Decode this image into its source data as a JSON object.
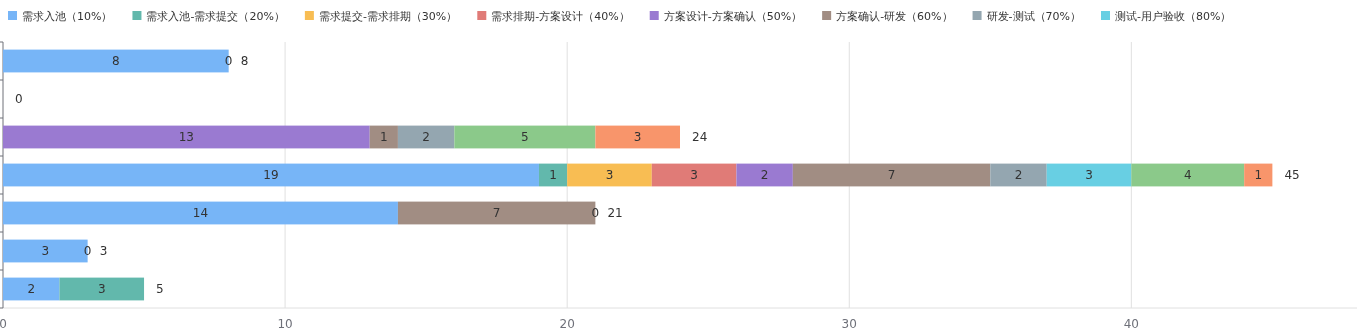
{
  "chart_data": {
    "type": "bar",
    "orientation": "horizontal",
    "stacked": true,
    "data_labels": true,
    "legend": "top",
    "grid": "x",
    "categories": [
      null,
      null,
      null,
      null,
      null,
      null,
      null
    ],
    "series": [
      {
        "name": "需求入池（10%）",
        "color": "#77b5f7",
        "values": [
          8,
          null,
          null,
          19,
          14,
          3,
          2
        ]
      },
      {
        "name": "需求入池-需求提交（20%）",
        "color": "#62b8ac",
        "values": [
          null,
          null,
          null,
          1,
          null,
          null,
          3
        ]
      },
      {
        "name": "需求提交-需求排期（30%）",
        "color": "#f8bd53",
        "values": [
          null,
          null,
          null,
          3,
          null,
          null,
          null
        ]
      },
      {
        "name": "需求排期-方案设计（40%）",
        "color": "#e07b77",
        "values": [
          null,
          null,
          null,
          3,
          null,
          null,
          null
        ]
      },
      {
        "name": "方案设计-方案确认（50%）",
        "color": "#9a7ad1",
        "values": [
          null,
          null,
          13,
          2,
          null,
          null,
          null
        ]
      },
      {
        "name": "方案确认-研发（60%）",
        "color": "#a18d83",
        "values": [
          null,
          null,
          1,
          7,
          7,
          null,
          null
        ]
      },
      {
        "name": "研发-测试（70%）",
        "color": "#94a6b0",
        "values": [
          null,
          null,
          2,
          2,
          null,
          null,
          null
        ]
      },
      {
        "name": "测试-用户验收（80%）",
        "color": "#68cfe3",
        "values": [
          null,
          null,
          null,
          3,
          null,
          null,
          null
        ]
      },
      {
        "color": "#8bc98a",
        "values": [
          null,
          null,
          5,
          4,
          null,
          null,
          null
        ]
      },
      {
        "color": "#f8956b",
        "values": [
          0,
          null,
          3,
          1,
          0,
          0,
          null
        ]
      }
    ],
    "totals": [
      "8",
      "0",
      "24",
      "45",
      "21",
      "3",
      "5"
    ],
    "xlim": [
      0,
      48
    ],
    "xticks": [
      0,
      10,
      20,
      30,
      40
    ]
  }
}
